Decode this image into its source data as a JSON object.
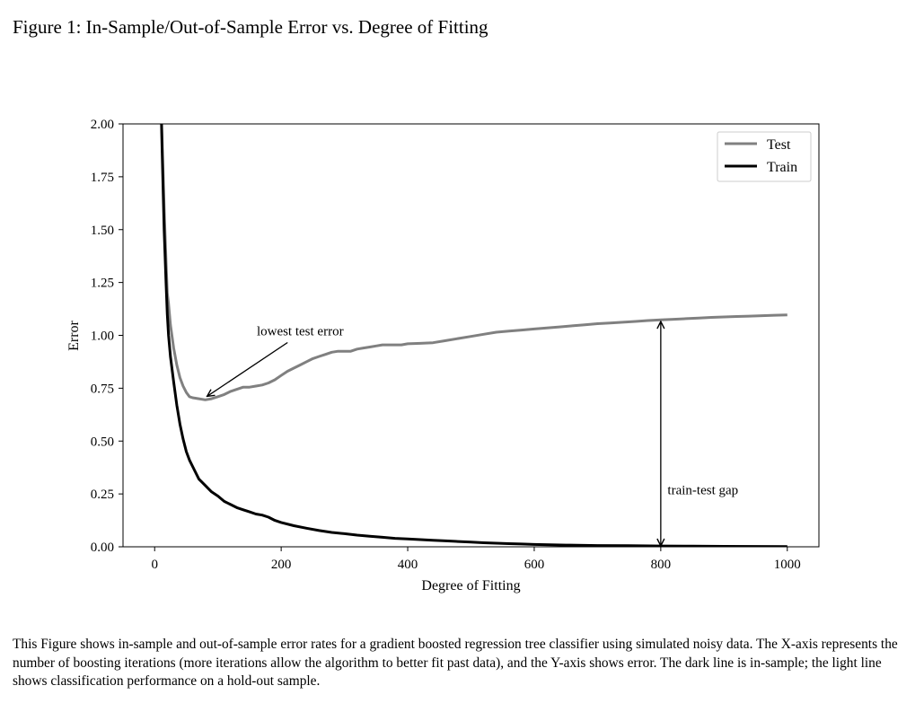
{
  "figure": {
    "title": "Figure 1: In-Sample/Out-of-Sample Error vs. Degree of Fitting",
    "caption": "This Figure shows in-sample and out-of-sample error rates for a gradient boosted regression tree classifier using simulated noisy data. The X-axis represents the number of boosting iterations (more iterations allow the algorithm to better fit past data), and the Y-axis shows error.  The dark line is in-sample; the light line shows classification performance on a hold-out sample."
  },
  "chart_data": {
    "type": "line",
    "title": "",
    "xlabel": "Degree of Fitting",
    "ylabel": "Error",
    "xlim": [
      -50,
      1050
    ],
    "ylim": [
      0,
      2
    ],
    "xticks": [
      0,
      200,
      400,
      600,
      800,
      1000
    ],
    "xtick_labels": [
      "0",
      "200",
      "400",
      "600",
      "800",
      "1000"
    ],
    "yticks": [
      0,
      0.25,
      0.5,
      0.75,
      1.0,
      1.25,
      1.5,
      1.75,
      2.0
    ],
    "ytick_labels": [
      "0.00",
      "0.25",
      "0.50",
      "0.75",
      "1.00",
      "1.25",
      "1.50",
      "1.75",
      "2.00"
    ],
    "legend_position": "top-right",
    "grid": false,
    "series": [
      {
        "name": "Test",
        "color": "#808080",
        "x": [
          10,
          15,
          18,
          20,
          22,
          25,
          30,
          35,
          40,
          45,
          50,
          55,
          60,
          70,
          80,
          90,
          100,
          110,
          120,
          130,
          140,
          150,
          160,
          170,
          180,
          190,
          200,
          210,
          220,
          230,
          240,
          250,
          260,
          270,
          280,
          290,
          300,
          310,
          320,
          330,
          340,
          350,
          360,
          370,
          380,
          390,
          400,
          420,
          440,
          460,
          480,
          500,
          520,
          540,
          560,
          580,
          600,
          620,
          640,
          660,
          680,
          700,
          720,
          740,
          760,
          780,
          800,
          820,
          840,
          860,
          880,
          900,
          920,
          940,
          960,
          980,
          1000
        ],
        "y": [
          2.1,
          1.6,
          1.35,
          1.2,
          1.15,
          1.05,
          0.94,
          0.86,
          0.8,
          0.76,
          0.73,
          0.71,
          0.705,
          0.7,
          0.695,
          0.7,
          0.71,
          0.72,
          0.735,
          0.745,
          0.755,
          0.755,
          0.76,
          0.765,
          0.775,
          0.79,
          0.81,
          0.83,
          0.845,
          0.86,
          0.875,
          0.89,
          0.9,
          0.91,
          0.92,
          0.925,
          0.925,
          0.925,
          0.935,
          0.94,
          0.945,
          0.95,
          0.955,
          0.955,
          0.955,
          0.955,
          0.96,
          0.962,
          0.965,
          0.975,
          0.985,
          0.995,
          1.005,
          1.015,
          1.02,
          1.025,
          1.03,
          1.035,
          1.04,
          1.045,
          1.05,
          1.055,
          1.058,
          1.062,
          1.066,
          1.07,
          1.073,
          1.076,
          1.079,
          1.082,
          1.085,
          1.087,
          1.089,
          1.091,
          1.093,
          1.095,
          1.097
        ]
      },
      {
        "name": "Train",
        "color": "#000000",
        "x": [
          10,
          12,
          15,
          18,
          20,
          22,
          25,
          30,
          35,
          40,
          45,
          50,
          55,
          60,
          70,
          80,
          90,
          100,
          110,
          120,
          130,
          140,
          150,
          160,
          170,
          180,
          190,
          200,
          220,
          240,
          260,
          280,
          300,
          320,
          340,
          360,
          380,
          400,
          420,
          440,
          460,
          480,
          500,
          520,
          540,
          560,
          580,
          600,
          650,
          700,
          750,
          800,
          850,
          900,
          950,
          1000
        ],
        "y": [
          2.1,
          1.85,
          1.5,
          1.25,
          1.1,
          1.0,
          0.9,
          0.78,
          0.67,
          0.58,
          0.51,
          0.45,
          0.41,
          0.38,
          0.32,
          0.29,
          0.26,
          0.24,
          0.215,
          0.2,
          0.185,
          0.175,
          0.165,
          0.155,
          0.15,
          0.14,
          0.125,
          0.115,
          0.1,
          0.088,
          0.077,
          0.068,
          0.062,
          0.055,
          0.05,
          0.045,
          0.04,
          0.037,
          0.034,
          0.031,
          0.028,
          0.025,
          0.022,
          0.019,
          0.017,
          0.015,
          0.013,
          0.011,
          0.008,
          0.006,
          0.005,
          0.004,
          0.003,
          0.002,
          0.0015,
          0.001
        ]
      }
    ],
    "annotations": [
      {
        "text": "lowest test error",
        "arrow_to": [
          80,
          0.72
        ],
        "text_at": [
          230,
          1.0
        ]
      },
      {
        "text": "train-test gap",
        "arrow_between": [
          [
            800,
            0.0
          ],
          [
            800,
            1.07
          ]
        ],
        "text_at": [
          815,
          0.27
        ]
      }
    ]
  }
}
